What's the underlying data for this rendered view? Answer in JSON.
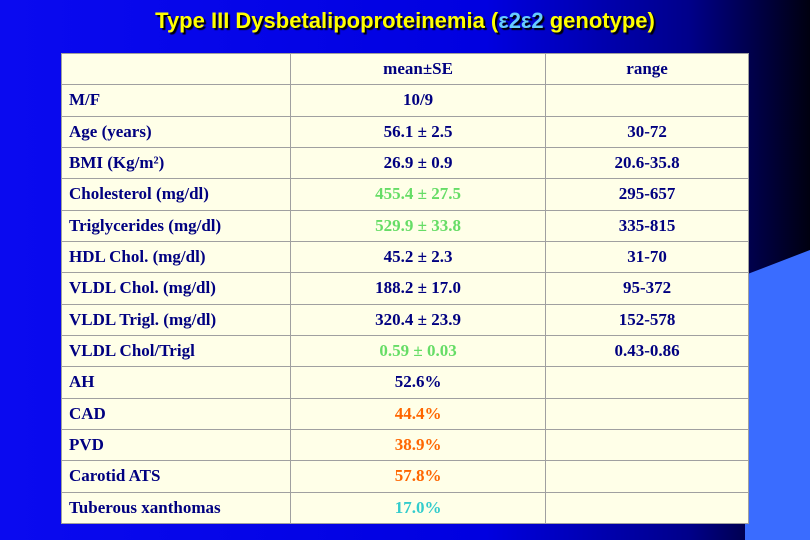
{
  "title": {
    "before": "Type III Dysbetalipoproteinemia (",
    "genotype": "ε2ε2",
    "after": " genotype)"
  },
  "table": {
    "header": [
      null,
      "mean±SE",
      "range"
    ],
    "default_color": "#000080",
    "rows": [
      {
        "label": "M/F",
        "mean": "10/9",
        "range": null
      },
      {
        "label": "Age (years)",
        "mean": "56.1 ± 2.5",
        "range": "30-72"
      },
      {
        "label": "BMI (Kg/m²)",
        "mean": "26.9 ± 0.9",
        "range": "20.6-35.8"
      },
      {
        "label": "Cholesterol (mg/dl)",
        "mean": "455.4 ± 27.5",
        "range": "295-657",
        "mean_color": "#66dd66"
      },
      {
        "label": "Triglycerides (mg/dl)",
        "mean": "529.9 ± 33.8",
        "range": "335-815",
        "mean_color": "#66dd66"
      },
      {
        "label": "HDL Chol. (mg/dl)",
        "mean": "45.2 ± 2.3",
        "range": "31-70"
      },
      {
        "label": "VLDL Chol. (mg/dl)",
        "mean": "188.2 ± 17.0",
        "range": "95-372"
      },
      {
        "label": "VLDL Trigl. (mg/dl)",
        "mean": "320.4 ± 23.9",
        "range": "152-578"
      },
      {
        "label": "VLDL Chol/Trigl",
        "mean": "0.59 ± 0.03",
        "range": "0.43-0.86",
        "mean_color": "#66dd66"
      },
      {
        "label": "AH",
        "mean": "52.6%",
        "range": null
      },
      {
        "label": "CAD",
        "mean": "44.4%",
        "range": null,
        "mean_color": "#ff6600"
      },
      {
        "label": "PVD",
        "mean": "38.9%",
        "range": null,
        "mean_color": "#ff6600"
      },
      {
        "label": "Carotid ATS",
        "mean": "57.8%",
        "range": null,
        "mean_color": "#ff6600"
      },
      {
        "label": "Tuberous xanthomas",
        "mean": "17.0%",
        "range": null,
        "mean_color": "#33cccc"
      }
    ]
  }
}
